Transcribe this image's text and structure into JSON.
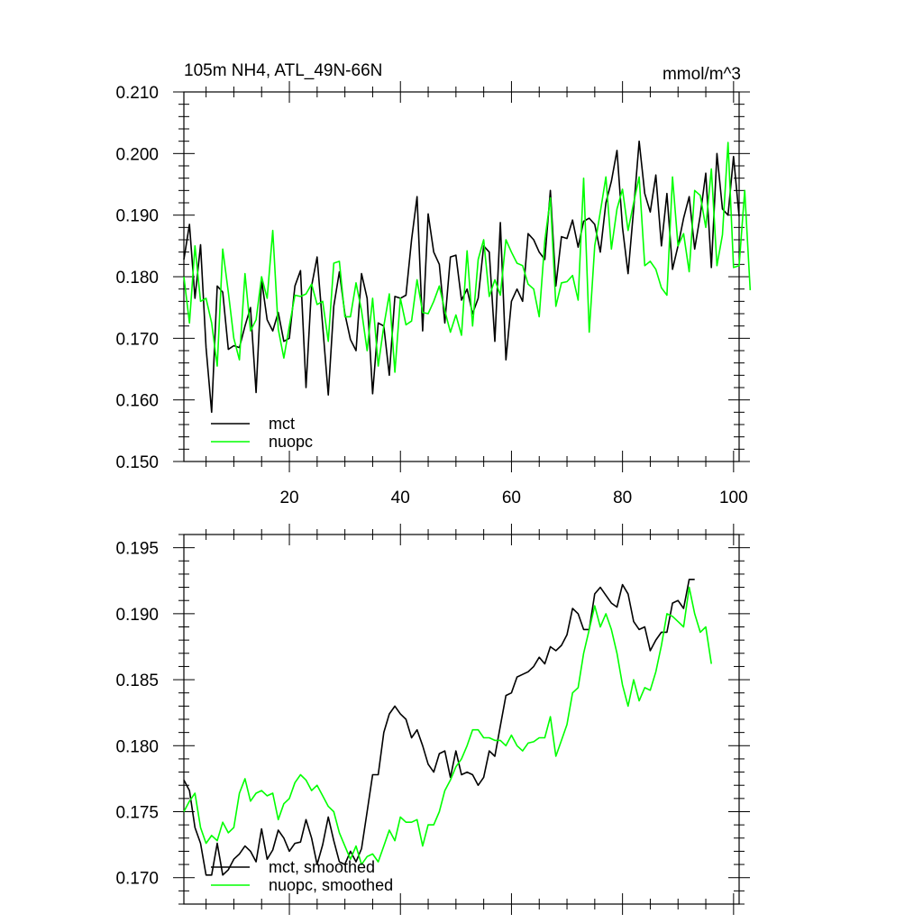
{
  "chart_data": [
    {
      "type": "line",
      "title": "105m NH4, ATL_49N-66N",
      "units": "mmol/m^3",
      "xlabel": "",
      "ylabel": "",
      "xlim": [
        1,
        101
      ],
      "ylim": [
        0.15,
        0.21
      ],
      "x_ticks": [
        "20",
        "40",
        "60",
        "80",
        "100"
      ],
      "y_ticks": [
        "0.150",
        "0.160",
        "0.170",
        "0.180",
        "0.190",
        "0.200",
        "0.210"
      ],
      "x_start": 1,
      "legend": [
        "mct",
        "nuopc"
      ],
      "legend_position": "bottom-left",
      "series": [
        {
          "name": "mct",
          "color": "#000000",
          "values": [
            0.1828,
            0.1885,
            0.1765,
            0.1852,
            0.1685,
            0.158,
            0.1785,
            0.1775,
            0.1682,
            0.1688,
            0.1685,
            0.172,
            0.175,
            0.1612,
            0.1795,
            0.173,
            0.1712,
            0.1742,
            0.1695,
            0.17,
            0.1785,
            0.181,
            0.162,
            0.1785,
            0.1832,
            0.172,
            0.1608,
            0.1752,
            0.1808,
            0.174,
            0.1698,
            0.168,
            0.1805,
            0.1765,
            0.161,
            0.1725,
            0.172,
            0.164,
            0.1768,
            0.1765,
            0.177,
            0.186,
            0.193,
            0.1712,
            0.1902,
            0.184,
            0.182,
            0.1725,
            0.1832,
            0.1835,
            0.1762,
            0.178,
            0.174,
            0.1765,
            0.185,
            0.184,
            0.1695,
            0.1888,
            0.1665,
            0.176,
            0.178,
            0.176,
            0.187,
            0.186,
            0.184,
            0.1828,
            0.194,
            0.1785,
            0.1865,
            0.1862,
            0.1892,
            0.1848,
            0.189,
            0.1895,
            0.1885,
            0.184,
            0.192,
            0.1955,
            0.2005,
            0.188,
            0.1805,
            0.191,
            0.202,
            0.1935,
            0.1905,
            0.1965,
            0.185,
            0.1935,
            0.1812,
            0.185,
            0.1895,
            0.193,
            0.1845,
            0.19,
            0.1968,
            0.1815,
            0.2,
            0.191,
            0.19,
            0.1995,
            0.1898
          ]
        },
        {
          "name": "nuopc",
          "color": "#00ff00",
          "values": [
            0.18,
            0.1725,
            0.185,
            0.176,
            0.1765,
            0.1725,
            0.1655,
            0.1845,
            0.1775,
            0.17,
            0.1665,
            0.1805,
            0.1712,
            0.173,
            0.18,
            0.1765,
            0.1875,
            0.1715,
            0.1668,
            0.172,
            0.177,
            0.1768,
            0.1772,
            0.1788,
            0.1755,
            0.176,
            0.1695,
            0.1822,
            0.1825,
            0.1735,
            0.1735,
            0.179,
            0.1745,
            0.168,
            0.1765,
            0.1655,
            0.172,
            0.1772,
            0.1645,
            0.1765,
            0.1722,
            0.1728,
            0.1795,
            0.1742,
            0.174,
            0.176,
            0.1785,
            0.1745,
            0.171,
            0.1738,
            0.1705,
            0.1842,
            0.172,
            0.1828,
            0.186,
            0.1768,
            0.1795,
            0.177,
            0.186,
            0.184,
            0.1822,
            0.1818,
            0.1788,
            0.178,
            0.1735,
            0.1858,
            0.1928,
            0.1752,
            0.179,
            0.1792,
            0.1802,
            0.1762,
            0.196,
            0.171,
            0.185,
            0.1905,
            0.1962,
            0.1845,
            0.191,
            0.1942,
            0.1875,
            0.192,
            0.1962,
            0.1818,
            0.1825,
            0.1812,
            0.1782,
            0.177,
            0.1962,
            0.185,
            0.187,
            0.1808,
            0.194,
            0.1932,
            0.188,
            0.1975,
            0.1818,
            0.1868,
            0.2018,
            0.1815,
            0.1818,
            0.194,
            0.1778
          ]
        }
      ]
    },
    {
      "type": "line",
      "title": "",
      "xlabel": "",
      "ylabel": "",
      "xlim": [
        1,
        101
      ],
      "ylim": [
        0.168,
        0.196
      ],
      "x_ticks": [],
      "y_ticks": [
        "0.170",
        "0.175",
        "0.180",
        "0.185",
        "0.190",
        "0.195"
      ],
      "x_start": 1,
      "legend": [
        "mct, smoothed",
        "nuopc, smoothed"
      ],
      "legend_position": "bottom-left",
      "series": [
        {
          "name": "mct, smoothed",
          "color": "#000000",
          "values": [
            0.1774,
            0.1766,
            0.1738,
            0.1726,
            0.1702,
            0.1702,
            0.1726,
            0.1702,
            0.1706,
            0.1714,
            0.1718,
            0.1724,
            0.172,
            0.1712,
            0.1737,
            0.1714,
            0.1721,
            0.1736,
            0.173,
            0.172,
            0.1726,
            0.1727,
            0.1744,
            0.173,
            0.171,
            0.1725,
            0.1746,
            0.1728,
            0.1712,
            0.171,
            0.172,
            0.1712,
            0.1722,
            0.175,
            0.1778,
            0.1778,
            0.181,
            0.1824,
            0.183,
            0.1824,
            0.182,
            0.1806,
            0.1812,
            0.18,
            0.1786,
            0.178,
            0.1794,
            0.1796,
            0.1776,
            0.1796,
            0.1778,
            0.178,
            0.1778,
            0.177,
            0.1776,
            0.1796,
            0.1792,
            0.1815,
            0.1838,
            0.184,
            0.1852,
            0.1854,
            0.1856,
            0.186,
            0.1867,
            0.1862,
            0.1875,
            0.1872,
            0.1876,
            0.1884,
            0.1904,
            0.19,
            0.1888,
            0.1888,
            0.1915,
            0.192,
            0.1914,
            0.1908,
            0.1905,
            0.1922,
            0.1915,
            0.1894,
            0.1888,
            0.189,
            0.1872,
            0.188,
            0.1886,
            0.1886,
            0.1908,
            0.191,
            0.1904,
            0.1926,
            0.1926
          ]
        },
        {
          "name": "nuopc, smoothed",
          "color": "#00ff00",
          "values": [
            0.175,
            0.1758,
            0.1764,
            0.1738,
            0.1726,
            0.1732,
            0.1728,
            0.1742,
            0.1734,
            0.1738,
            0.1764,
            0.1775,
            0.1758,
            0.1764,
            0.1766,
            0.1762,
            0.1764,
            0.1744,
            0.1756,
            0.176,
            0.1772,
            0.1778,
            0.1774,
            0.1766,
            0.177,
            0.1762,
            0.1754,
            0.175,
            0.1734,
            0.1724,
            0.1714,
            0.1724,
            0.171,
            0.1716,
            0.1718,
            0.1712,
            0.1724,
            0.1736,
            0.1728,
            0.1746,
            0.1742,
            0.1742,
            0.1744,
            0.1724,
            0.174,
            0.174,
            0.175,
            0.1766,
            0.1774,
            0.1784,
            0.179,
            0.18,
            0.1812,
            0.1812,
            0.1806,
            0.1806,
            0.1804,
            0.1804,
            0.18,
            0.1808,
            0.18,
            0.1796,
            0.1802,
            0.1803,
            0.1806,
            0.1806,
            0.1822,
            0.1792,
            0.1804,
            0.1816,
            0.184,
            0.1844,
            0.187,
            0.1888,
            0.1906,
            0.189,
            0.19,
            0.1888,
            0.187,
            0.1846,
            0.183,
            0.185,
            0.1834,
            0.1844,
            0.1842,
            0.1856,
            0.1876,
            0.19,
            0.1898,
            0.1894,
            0.189,
            0.192,
            0.19,
            0.1886,
            0.189,
            0.1862
          ]
        }
      ]
    }
  ]
}
